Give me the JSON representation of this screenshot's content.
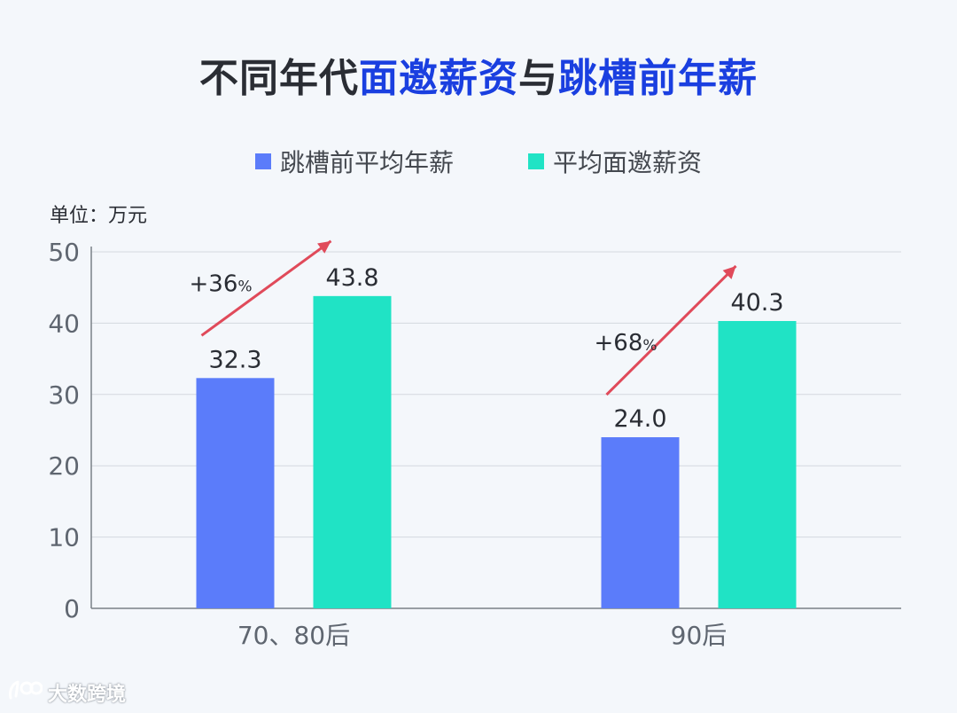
{
  "title": {
    "part1": "不同年代",
    "part2": "面邀薪资",
    "part3": "与",
    "part4": "跳槽前年薪",
    "normal_color": "#2a2d34",
    "highlight_color": "#1a3fe0"
  },
  "unit": "单位：万元",
  "watermark": "大数跨境",
  "chart_data": {
    "type": "bar",
    "categories": [
      "70、80后",
      "90后"
    ],
    "series": [
      {
        "name": "跳槽前平均年薪",
        "color": "#5b7cfa",
        "values": [
          32.3,
          24.0
        ],
        "labels": [
          "32.3",
          "24.0"
        ]
      },
      {
        "name": "平均面邀薪资",
        "color": "#20e3c5",
        "values": [
          43.8,
          40.3
        ],
        "labels": [
          "43.8",
          "40.3"
        ]
      }
    ],
    "ylim": [
      0,
      50
    ],
    "yticks": [
      0,
      10,
      20,
      30,
      40,
      50
    ],
    "grid": true,
    "legend": "top-center",
    "annotations": [
      {
        "category": "70、80后",
        "value": "+36",
        "suffix": "%"
      },
      {
        "category": "90后",
        "value": "+68",
        "suffix": "%"
      }
    ],
    "arrow_color": "#e04a5a"
  }
}
